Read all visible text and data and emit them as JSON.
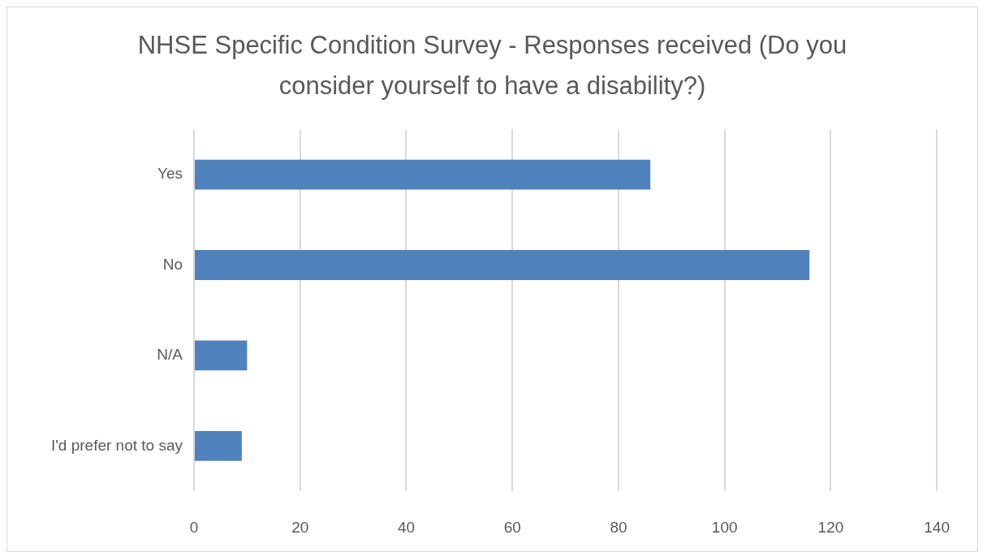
{
  "chart_data": {
    "type": "bar",
    "orientation": "horizontal",
    "title": "NHSE Specific Condition Survey - Responses received (Do you consider yourself to have a disability?)",
    "categories": [
      "Yes",
      "No",
      "N/A",
      "I'd prefer not to say"
    ],
    "values": [
      86,
      116,
      10,
      9
    ],
    "color": "#4f81bd",
    "xlim": [
      0,
      140
    ],
    "xticks": [
      0,
      20,
      40,
      60,
      80,
      100,
      120,
      140
    ],
    "grid": "x"
  }
}
